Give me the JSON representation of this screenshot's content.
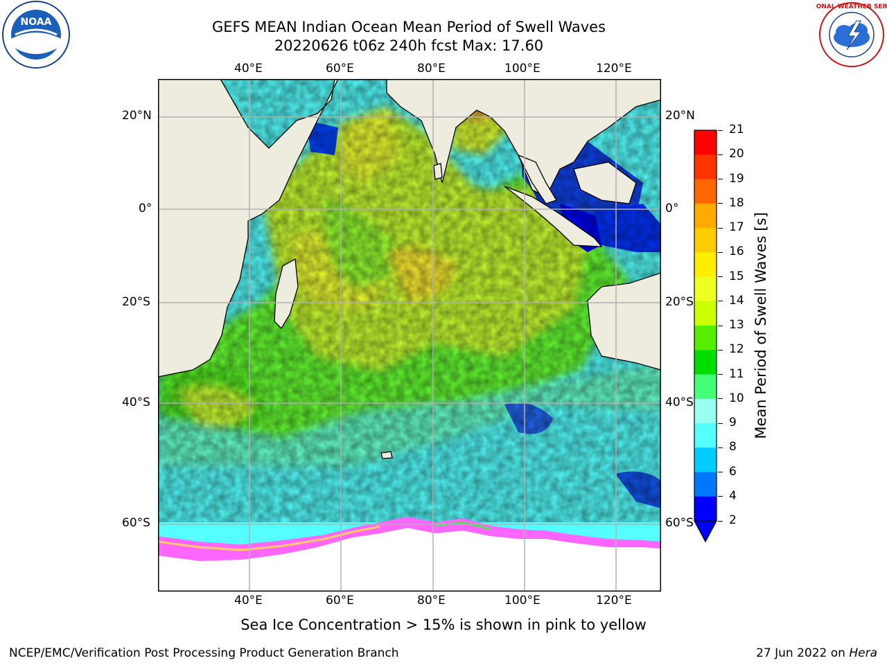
{
  "header": {
    "title_line1": "GEFS MEAN Indian Ocean Mean Period of Swell Waves",
    "title_line2": "20220626 t06z 240h fcst   Max: 17.60"
  },
  "logos": {
    "left_text": "NOAA",
    "left_ring": "NATIONAL OCEANIC AND ATMOSPHERIC ADMINISTRATION · U.S. DEPARTMENT OF COMMERCE",
    "right_ring": "NATIONAL WEATHER SERVICE"
  },
  "map": {
    "lon_labels": [
      "40°E",
      "60°E",
      "80°E",
      "100°E",
      "120°E"
    ],
    "lat_labels": [
      "20°N",
      "0°",
      "20°S",
      "40°S",
      "60°S"
    ],
    "colors": {
      "land": "#eeecdf",
      "ice": "#ffffff",
      "ice_edge_pink": "#ff66ff",
      "grid": "#b0b0b0"
    }
  },
  "colorbar": {
    "label": "Mean Period of Swell Waves [s]",
    "ticks": [
      "21",
      "20",
      "19",
      "18",
      "17",
      "16",
      "15",
      "14",
      "13",
      "12",
      "11",
      "10",
      "9",
      "8",
      "6",
      "4",
      "2"
    ],
    "colors": [
      "#ff0000",
      "#ff3300",
      "#ff6600",
      "#ff8800",
      "#ffaa00",
      "#ffcc00",
      "#ffee00",
      "#eeff22",
      "#ccff00",
      "#99ff00",
      "#55ee00",
      "#00dd00",
      "#44ff77",
      "#99ffee",
      "#55ffff",
      "#00eeff",
      "#00ccff",
      "#0077ff",
      "#0000ff"
    ]
  },
  "footer": {
    "caption": "Sea Ice Concentration > 15% is shown in pink to yellow",
    "credit": "NCEP/EMC/Verification Post Processing Product Generation Branch",
    "date_prefix": "27 Jun 2022 on ",
    "date_host": "Hera"
  }
}
